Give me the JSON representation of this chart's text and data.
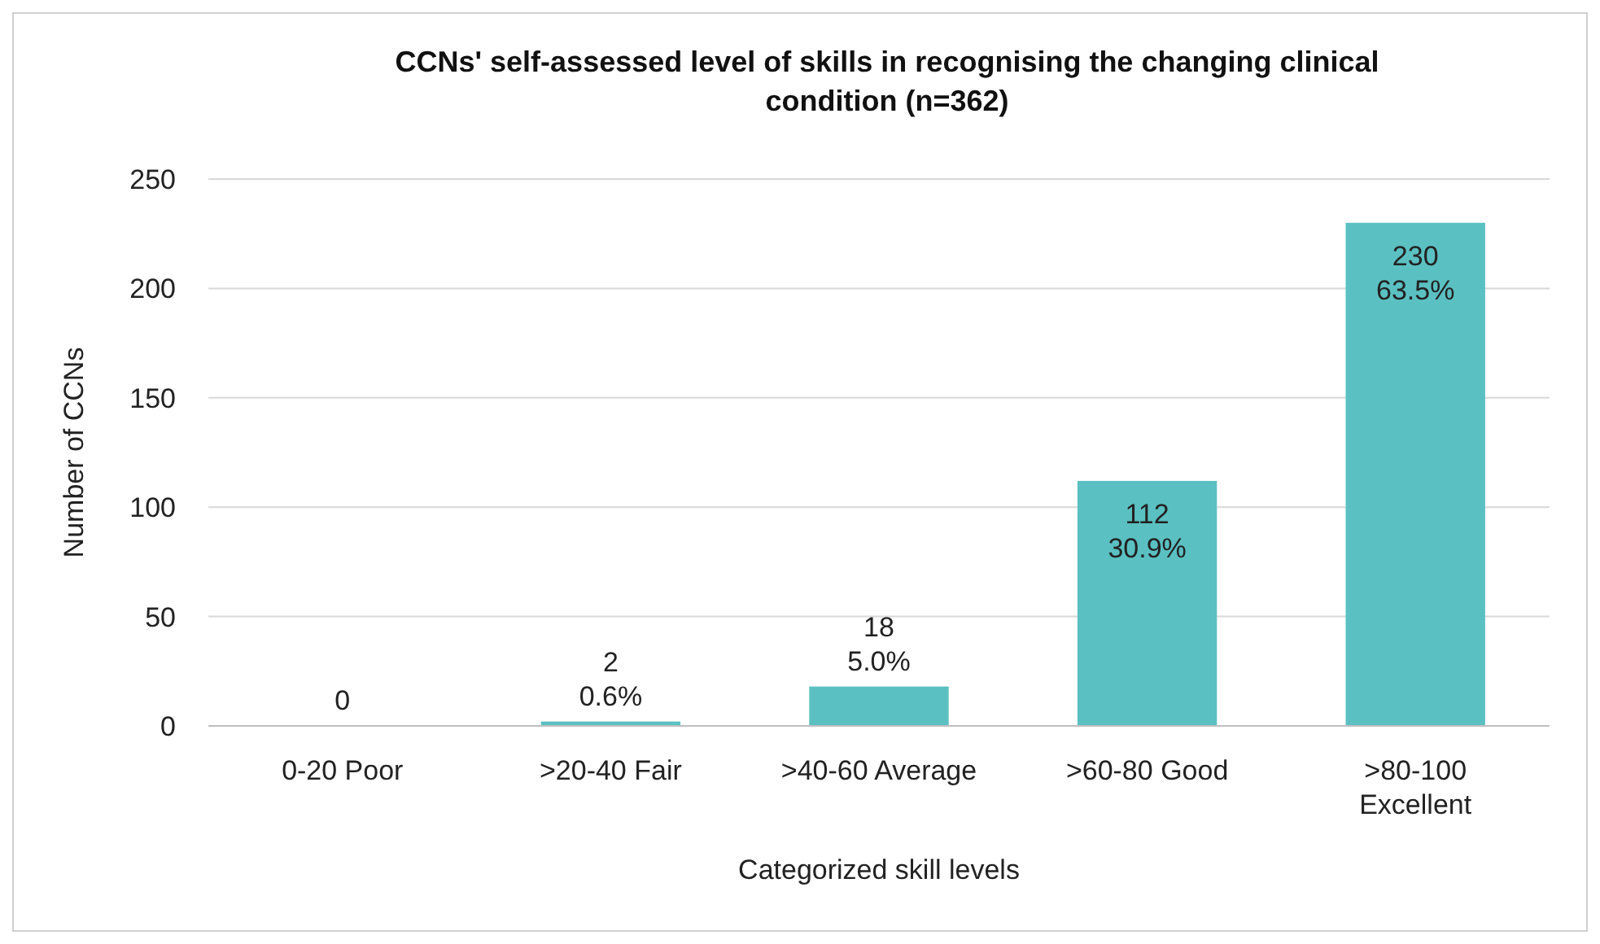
{
  "chart_data": {
    "type": "bar",
    "title": "CCNs' self-assessed level of skills in recognising the changing clinical condition (n=362)",
    "xlabel": "Categorized skill levels",
    "ylabel": "Number of CCNs",
    "categories": [
      "0-20 Poor",
      ">20-40 Fair",
      ">40-60 Average",
      ">60-80 Good",
      ">80-100 Excellent"
    ],
    "values": [
      0,
      2,
      18,
      112,
      230
    ],
    "value_labels": [
      "0",
      "2\n0.6%",
      "18\n5.0%",
      "112\n30.9%",
      "230\n63.5%"
    ],
    "color": "#5bc0c2",
    "ylim": [
      0,
      250
    ],
    "yticks": [
      0,
      50,
      100,
      150,
      200,
      250
    ],
    "grid": "y"
  }
}
